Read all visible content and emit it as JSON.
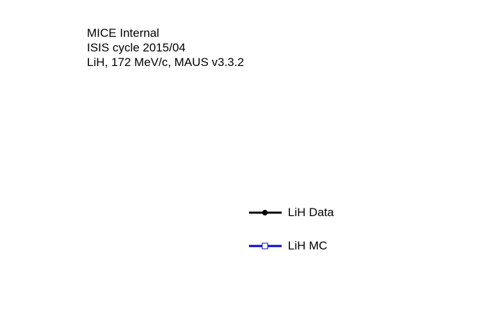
{
  "chart_data": {
    "type": "line",
    "annotations": [
      "MICE Internal",
      "ISIS cycle 2015/04",
      "LiH, 172 MeV/c, MAUS v3.3.2"
    ],
    "legend_placement": "center-right",
    "series": [
      {
        "name": "LiH Data",
        "color": "#000000",
        "marker": "filled-circle",
        "values": []
      },
      {
        "name": "LiH MC",
        "color": "#0000cc",
        "marker": "open-square",
        "values": []
      }
    ]
  }
}
